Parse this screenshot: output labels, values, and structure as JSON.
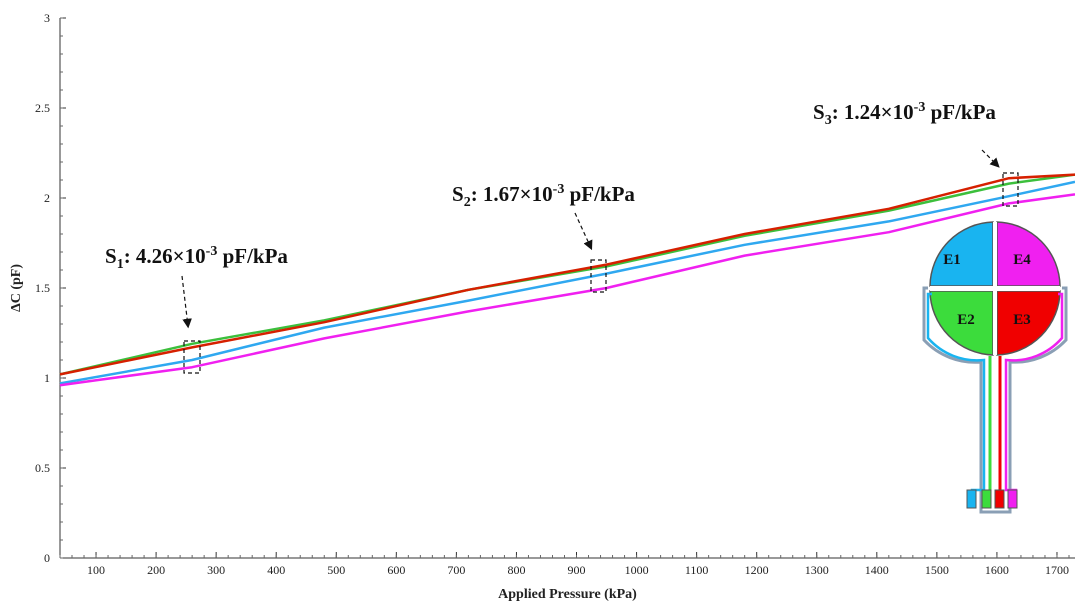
{
  "chart_data": {
    "type": "line",
    "x_label": "Applied Pressure (kPa)",
    "y_label": "ΔC (pF)",
    "x": [
      40,
      260,
      480,
      720,
      950,
      1180,
      1420,
      1620,
      1730
    ],
    "series": [
      {
        "color": "#3cbf3c",
        "values": [
          1.02,
          1.19,
          1.32,
          1.49,
          1.62,
          1.79,
          1.93,
          2.08,
          2.13
        ]
      },
      {
        "color": "#d62000",
        "values": [
          1.02,
          1.17,
          1.31,
          1.49,
          1.63,
          1.8,
          1.94,
          2.11,
          2.13
        ]
      },
      {
        "color": "#2fa8f0",
        "values": [
          0.97,
          1.1,
          1.28,
          1.43,
          1.58,
          1.74,
          1.87,
          2.01,
          2.09
        ]
      },
      {
        "color": "#f020f0",
        "values": [
          0.96,
          1.06,
          1.22,
          1.37,
          1.5,
          1.68,
          1.81,
          1.97,
          2.02
        ]
      }
    ],
    "xlim": [
      40,
      1730
    ],
    "ylim": [
      0,
      3
    ],
    "xticks": [
      100,
      200,
      300,
      400,
      500,
      600,
      700,
      800,
      900,
      1000,
      1100,
      1200,
      1300,
      1400,
      1500,
      1600,
      1700
    ],
    "yticks": [
      0,
      0.5,
      1,
      1.5,
      2,
      2.5,
      3
    ],
    "annotations": [
      {
        "symbol": "S",
        "subscript": "1",
        "text": ": 4.26×10",
        "superscript": "-3",
        "unit": " pF/kPa"
      },
      {
        "symbol": "S",
        "subscript": "2",
        "text": ": 1.67×10",
        "superscript": "-3",
        "unit": " pF/kPa"
      },
      {
        "symbol": "S",
        "subscript": "3",
        "text": ": 1.24×10",
        "superscript": "-3",
        "unit": " pF/kPa"
      }
    ]
  },
  "inset": {
    "labels": [
      "E1",
      "E4",
      "E2",
      "E3"
    ]
  }
}
